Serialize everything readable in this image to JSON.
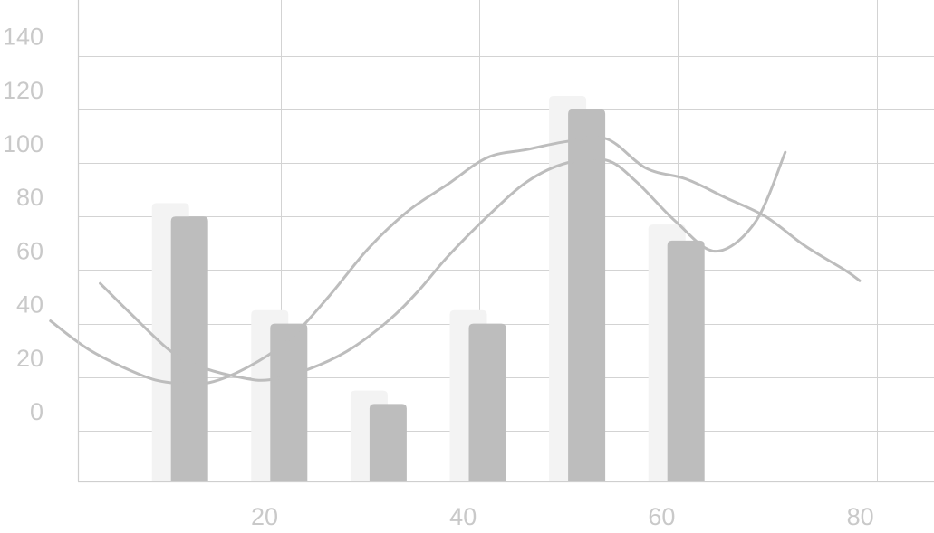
{
  "chart_data": {
    "type": "bar",
    "title": "",
    "xlabel": "",
    "ylabel": "",
    "grid": true,
    "legend": "none",
    "xlim": [
      1,
      83
    ],
    "ylim": [
      -20,
      160
    ],
    "x_ticks": [
      "20",
      "40",
      "60",
      "80"
    ],
    "x_tick_values": [
      20,
      40,
      60,
      80
    ],
    "y_ticks": [
      "0",
      "20",
      "40",
      "60",
      "80",
      "100",
      "120",
      "140"
    ],
    "y_tick_values": [
      0,
      20,
      40,
      60,
      80,
      100,
      120,
      140
    ],
    "x_gridlines": [
      20,
      40,
      60,
      80
    ],
    "y_gridlines": [
      -19,
      0,
      20,
      40,
      60,
      80,
      100,
      120,
      140
    ],
    "x": [
      15,
      25,
      35,
      45,
      55,
      65
    ],
    "series": [
      {
        "type": "bar",
        "role": "background",
        "color": "#f3f3f3",
        "values": [
          85,
          45,
          15,
          45,
          125,
          77
        ]
      },
      {
        "type": "bar",
        "role": "foreground",
        "color": "#bdbdbd",
        "values": [
          80,
          40,
          10,
          40,
          120,
          71
        ]
      },
      {
        "type": "line",
        "color": "#bdbdbd",
        "x": [
          1,
          5,
          10,
          13,
          17,
          21,
          25,
          29,
          33,
          37,
          41,
          45,
          49,
          53,
          57,
          61,
          65,
          69,
          73,
          77,
          81,
          82.5
        ],
        "values": [
          41,
          30,
          21,
          18,
          18,
          24,
          34,
          50,
          68,
          82,
          92,
          102,
          105,
          108,
          109,
          98,
          94,
          87,
          80,
          69,
          60,
          56
        ]
      },
      {
        "type": "line",
        "color": "#bdbdbd",
        "x": [
          6,
          9,
          13,
          16,
          20,
          23,
          27,
          31,
          35,
          38,
          41,
          45,
          49,
          53,
          57,
          60,
          64,
          68,
          72,
          75
        ],
        "values": [
          55,
          44,
          30,
          24,
          20,
          19,
          23,
          30,
          41,
          52,
          65,
          80,
          93,
          100,
          101,
          93,
          78,
          67,
          78,
          104
        ]
      }
    ]
  }
}
